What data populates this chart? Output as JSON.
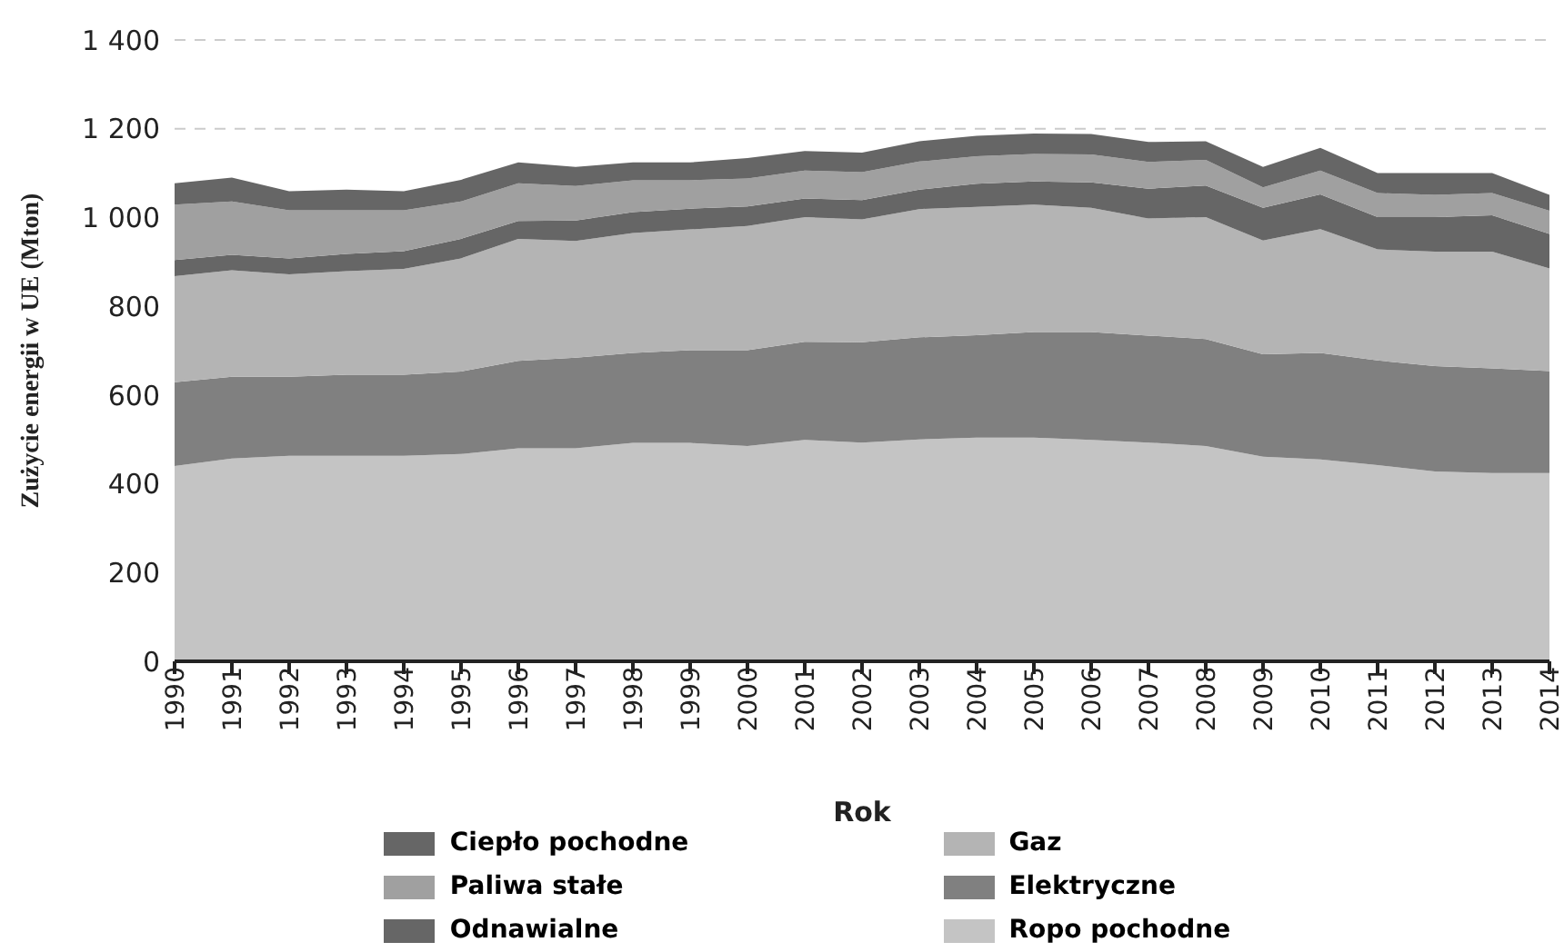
{
  "chart_data": {
    "type": "area",
    "stacked": true,
    "xlabel": "Rok",
    "ylabel": "Zużycie energii w UE (Mton)",
    "categories": [
      "1990",
      "1991",
      "1992",
      "1993",
      "1994",
      "1995",
      "1996",
      "1997",
      "1998",
      "1999",
      "2000",
      "2001",
      "2002",
      "2003",
      "2004",
      "2005",
      "2006",
      "2007",
      "2008",
      "2009",
      "2010",
      "2011",
      "2012",
      "2013",
      "2014"
    ],
    "ylim": [
      0,
      1400
    ],
    "yticks": [
      0,
      200,
      400,
      600,
      800,
      {
        "value": 1000,
        "label": "1 000"
      },
      {
        "value": 1200,
        "label": "1 200"
      },
      {
        "value": 1400,
        "label": "1 400"
      }
    ],
    "grid": "y",
    "legend": "bottom",
    "series": [
      {
        "name": "Ropo pochodne",
        "color": "#c4c4c4",
        "values": [
          440,
          457,
          463,
          463,
          463,
          467,
          480,
          480,
          492,
          492,
          485,
          499,
          493,
          500,
          504,
          504,
          499,
          493,
          485,
          461,
          455,
          442,
          428,
          424,
          424
        ]
      },
      {
        "name": "Elektryczne",
        "color": "#808080",
        "values": [
          189,
          184,
          178,
          183,
          183,
          186,
          197,
          204,
          203,
          209,
          216,
          221,
          226,
          230,
          231,
          238,
          243,
          241,
          241,
          231,
          240,
          236,
          237,
          236,
          230
        ]
      },
      {
        "name": "Gaz",
        "color": "#b4b4b4",
        "values": [
          239,
          240,
          231,
          233,
          238,
          255,
          275,
          263,
          270,
          272,
          280,
          281,
          277,
          289,
          289,
          287,
          280,
          264,
          275,
          256,
          279,
          250,
          258,
          263,
          231
        ]
      },
      {
        "name": "Odnawialne",
        "color": "#666666",
        "values": [
          36,
          35,
          36,
          39,
          40,
          44,
          40,
          46,
          47,
          47,
          44,
          42,
          43,
          44,
          52,
          52,
          57,
          67,
          71,
          74,
          78,
          73,
          78,
          82,
          78
        ]
      },
      {
        "name": "Paliwa stałe",
        "color": "#a0a0a0",
        "values": [
          125,
          120,
          108,
          98,
          92,
          84,
          85,
          78,
          72,
          64,
          63,
          63,
          63,
          63,
          62,
          62,
          63,
          60,
          58,
          46,
          54,
          54,
          50,
          50,
          52
        ]
      },
      {
        "name": "Ciepło pochodne",
        "color": "#666666",
        "values": [
          48,
          54,
          43,
          47,
          43,
          49,
          47,
          43,
          40,
          40,
          46,
          44,
          44,
          46,
          46,
          46,
          46,
          45,
          42,
          46,
          51,
          45,
          49,
          45,
          36
        ]
      }
    ]
  }
}
